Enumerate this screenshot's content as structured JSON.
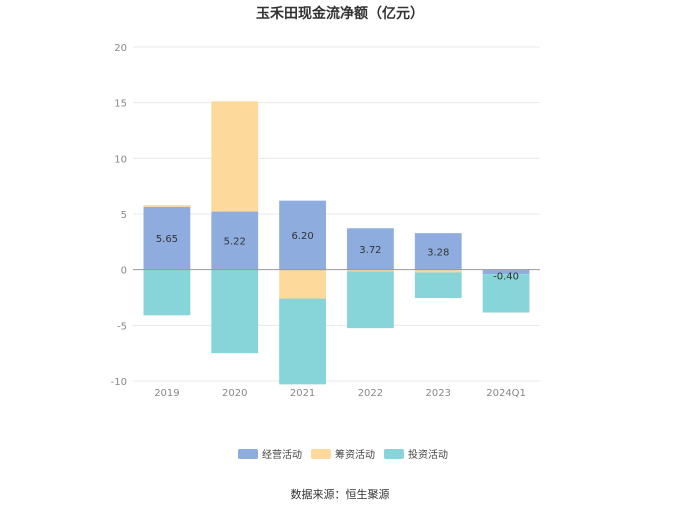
{
  "chart_data": {
    "type": "bar",
    "stacked": true,
    "title": "玉禾田现金流净额（亿元）",
    "categories": [
      "2019",
      "2020",
      "2021",
      "2022",
      "2023",
      "2024Q1"
    ],
    "ylim": [
      -10,
      20
    ],
    "yticks": [
      -10,
      -5,
      0,
      5,
      10,
      15,
      20
    ],
    "grid": true,
    "legend_position": "bottom",
    "series": [
      {
        "name": "经营活动",
        "color": "#8eadde",
        "values": [
          5.65,
          5.22,
          6.2,
          3.72,
          3.28,
          -0.4
        ],
        "labels": [
          "5.65",
          "5.22",
          "6.20",
          "3.72",
          "3.28",
          "-0.40"
        ]
      },
      {
        "name": "筹资活动",
        "color": "#fdd99b",
        "values": [
          0.15,
          9.9,
          -2.6,
          -0.15,
          -0.25,
          0
        ]
      },
      {
        "name": "投资活动",
        "color": "#87d5d9",
        "values": [
          -4.1,
          -7.5,
          -7.7,
          -5.1,
          -2.3,
          -3.45
        ]
      }
    ]
  },
  "source": "数据来源：恒生聚源"
}
